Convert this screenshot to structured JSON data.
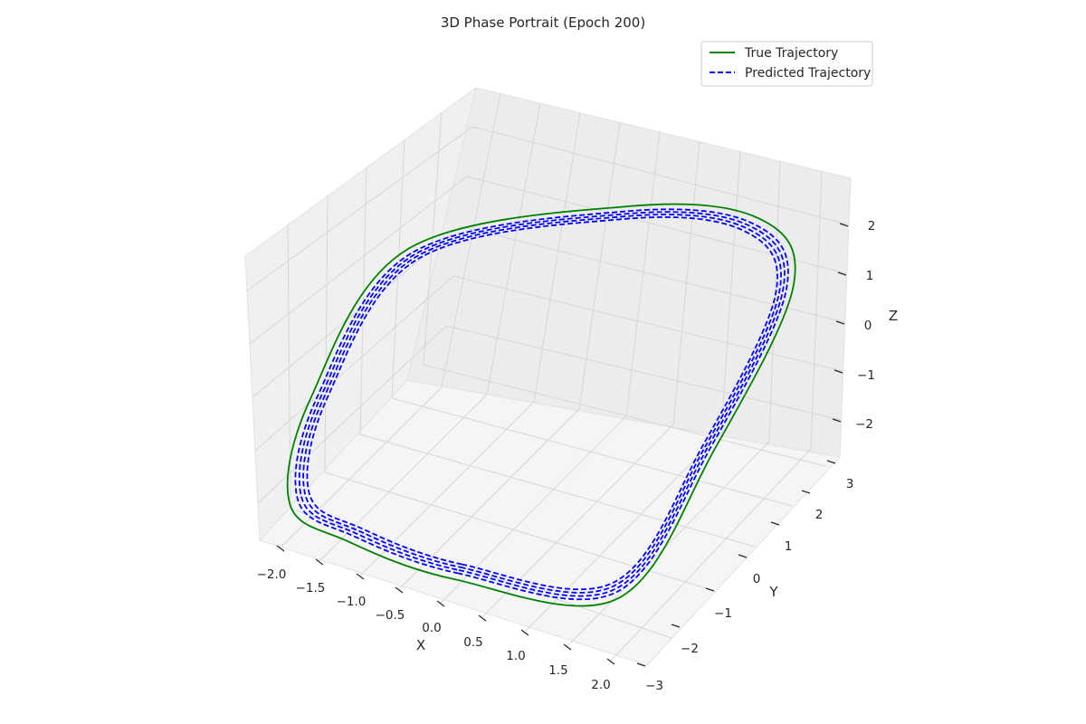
{
  "chart_data": {
    "type": "line",
    "projection": "3d",
    "title": "3D Phase Portrait (Epoch 200)",
    "xlabel": "X",
    "ylabel": "Y",
    "zlabel": "Z",
    "xlim": [
      -2.2,
      2.2
    ],
    "ylim": [
      -3.2,
      3.2
    ],
    "zlim": [
      -2.7,
      2.7
    ],
    "x_ticks": [
      "−2.0",
      "−1.5",
      "−1.0",
      "−0.5",
      "0.0",
      "0.5",
      "1.0",
      "1.5",
      "2.0"
    ],
    "y_ticks": [
      "−3",
      "−2",
      "−1",
      "0",
      "1",
      "2",
      "3"
    ],
    "z_ticks": [
      "−2",
      "−1",
      "0",
      "1",
      "2"
    ],
    "grid": true,
    "legend_position": "top-right",
    "series": [
      {
        "name": "True Trajectory",
        "color": "#008000",
        "style": "solid",
        "loop_scale": 1.0,
        "x": [
          0.0,
          1.7,
          1.95,
          2.0,
          1.3,
          0.0,
          -1.7,
          -1.95,
          -2.0,
          -1.3,
          0.0
        ],
        "y": [
          -3.0,
          -2.3,
          0.0,
          2.3,
          3.0,
          2.3,
          0.0,
          -2.3,
          -3.0,
          -3.0,
          -3.0
        ],
        "z": [
          -2.0,
          -1.9,
          -0.3,
          1.5,
          2.0,
          2.0,
          1.8,
          0.2,
          -1.6,
          -2.0,
          -2.0
        ]
      },
      {
        "name": "Predicted Trajectory",
        "color": "#0000ff",
        "style": "dashed",
        "loop_scale": [
          0.985,
          0.97,
          0.955,
          0.94
        ],
        "x": [
          0.0,
          1.68,
          1.93,
          1.97,
          1.28,
          0.0,
          -1.68,
          -1.93,
          -1.97,
          -1.28,
          0.0
        ],
        "y": [
          -2.95,
          -2.27,
          0.0,
          2.27,
          2.95,
          2.27,
          0.0,
          -2.27,
          -2.95,
          -2.95,
          -2.95
        ],
        "z": [
          -1.97,
          -1.87,
          -0.3,
          1.47,
          1.97,
          1.97,
          1.77,
          0.2,
          -1.57,
          -1.97,
          -1.97
        ]
      }
    ]
  }
}
